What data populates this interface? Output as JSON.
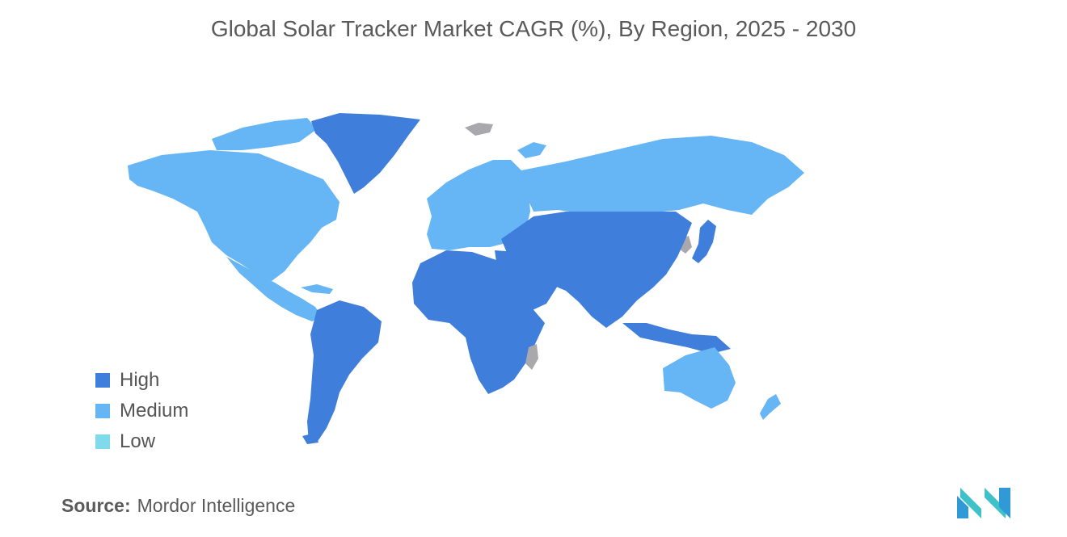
{
  "title": "Global Solar Tracker Market CAGR (%), By Region, 2025 - 2030",
  "legend": [
    {
      "label": "High",
      "color": "#3f7fdb"
    },
    {
      "label": "Medium",
      "color": "#66b5f5"
    },
    {
      "label": "Low",
      "color": "#7fdbeb"
    }
  ],
  "no_data_color": "#a9a9ad",
  "regions": {
    "north_america": "Medium",
    "greenland": "High",
    "central_america": "Medium",
    "south_america": "High",
    "europe": "Medium",
    "russia": "Medium",
    "africa": "High",
    "middle_east": "High",
    "asia_pacific": "High",
    "australia": "Medium",
    "new_zealand": "Medium"
  },
  "source": {
    "label": "Source:",
    "value": "Mordor Intelligence"
  },
  "logo": {
    "icon": "mordor-intelligence-logo"
  }
}
